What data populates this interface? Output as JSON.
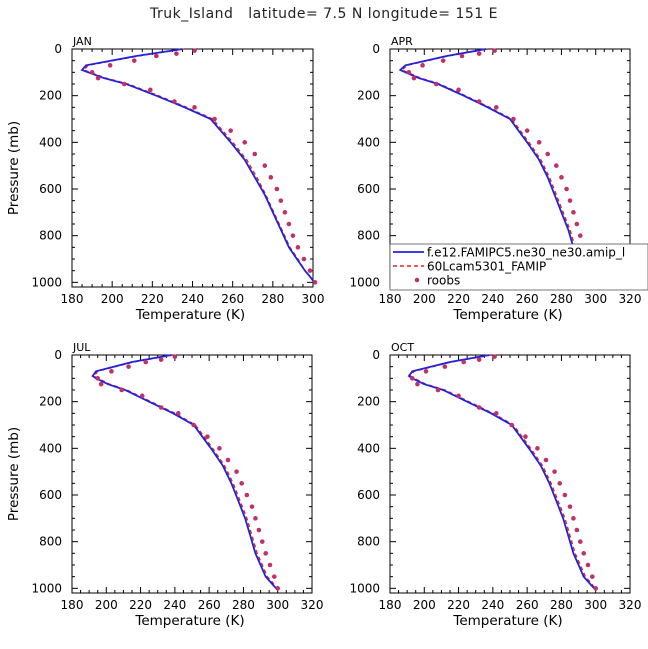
{
  "figure": {
    "title": "Truk_Island   latitude= 7.5 N longitude= 151 E"
  },
  "legend": {
    "entries": [
      {
        "name": "f.e12.FAMIPC5.ne30_ne30.amip_l",
        "style": "solid",
        "color": "#2222dd"
      },
      {
        "name": "60Lcam5301_FAMIP",
        "style": "dashed",
        "color": "#dd2222"
      },
      {
        "name": "roobs",
        "style": "marker",
        "color": "#c0306a"
      }
    ]
  },
  "chart_data": [
    {
      "type": "line",
      "panel_label": "JAN",
      "xlabel": "Temperature (K)",
      "ylabel": "Pressure (mb)",
      "xlim": [
        180,
        300
      ],
      "ylim": [
        1020,
        0
      ],
      "xticks": [
        180,
        200,
        220,
        240,
        260,
        280,
        300
      ],
      "yticks": [
        0,
        200,
        400,
        600,
        800,
        1000
      ],
      "series": [
        {
          "name": "f.e12.FAMIPC5.ne30_ne30.amip_l",
          "x": [
            235,
            212,
            187,
            185,
            188,
            196,
            207,
            222,
            236,
            249,
            259,
            266,
            271,
            276,
            280,
            284,
            288,
            292,
            296,
            298.5,
            300.5
          ],
          "y": [
            0,
            30,
            70,
            90,
            100,
            125,
            150,
            200,
            250,
            300,
            400,
            475,
            550,
            625,
            700,
            775,
            850,
            900,
            950,
            975,
            1000
          ]
        },
        {
          "name": "60Lcam5301_FAMIP",
          "x": [
            236,
            213,
            188,
            186,
            189,
            197,
            208,
            223,
            237,
            250,
            260,
            267,
            272,
            276.5,
            280.5,
            284.5,
            288.5,
            292.5,
            296,
            298.5,
            300.5
          ],
          "y": [
            0,
            30,
            70,
            90,
            100,
            125,
            150,
            200,
            250,
            300,
            400,
            475,
            550,
            625,
            700,
            775,
            850,
            900,
            950,
            975,
            1000
          ]
        },
        {
          "name": "roobs",
          "x": [
            241,
            232,
            222,
            211,
            199,
            190,
            193,
            206,
            219,
            231,
            241,
            251,
            259,
            266,
            271,
            276,
            279,
            282,
            284,
            286,
            288,
            290,
            292.5,
            295.5,
            298.5,
            301
          ],
          "y": [
            7,
            20,
            30,
            50,
            70,
            100,
            125,
            150,
            175,
            225,
            250,
            300,
            350,
            400,
            450,
            500,
            550,
            600,
            650,
            700,
            750,
            800,
            850,
            900,
            950,
            1000
          ]
        }
      ]
    },
    {
      "type": "line",
      "panel_label": "APR",
      "xlabel": "Temperature (K)",
      "ylabel": "",
      "xlim": [
        180,
        320
      ],
      "ylim": [
        1020,
        0
      ],
      "xticks": [
        180,
        200,
        220,
        240,
        260,
        280,
        300,
        320
      ],
      "yticks": [
        0,
        200,
        400,
        600,
        800,
        1000
      ],
      "series": [
        {
          "name": "f.e12.FAMIPC5.ne30_ne30.amip_l",
          "x": [
            236,
            213,
            189,
            186,
            189,
            197,
            208,
            223,
            237,
            250,
            260,
            267,
            272,
            276,
            280,
            284,
            287,
            290,
            294,
            297,
            300
          ],
          "y": [
            0,
            30,
            70,
            90,
            100,
            125,
            150,
            200,
            250,
            300,
            400,
            475,
            550,
            625,
            700,
            775,
            850,
            900,
            950,
            975,
            1000
          ]
        },
        {
          "name": "60Lcam5301_FAMIP",
          "x": [
            237,
            214,
            190,
            187,
            190,
            198,
            209,
            224,
            238,
            251,
            261,
            268,
            273,
            277,
            281,
            285,
            288,
            291,
            294.5,
            297.5,
            300
          ],
          "y": [
            0,
            30,
            70,
            90,
            100,
            125,
            150,
            200,
            250,
            300,
            400,
            475,
            550,
            625,
            700,
            775,
            850,
            900,
            950,
            975,
            1000
          ]
        },
        {
          "name": "roobs",
          "x": [
            241,
            232,
            222,
            211,
            199,
            191,
            194,
            207,
            220,
            232,
            242,
            252,
            260,
            267,
            272,
            277,
            280,
            283,
            285,
            287,
            289,
            291,
            293.5,
            296,
            299,
            300.5
          ],
          "y": [
            7,
            20,
            30,
            50,
            70,
            100,
            125,
            150,
            175,
            225,
            250,
            300,
            350,
            400,
            450,
            500,
            550,
            600,
            650,
            700,
            750,
            800,
            850,
            900,
            950,
            1000
          ]
        }
      ]
    },
    {
      "type": "line",
      "panel_label": "JUL",
      "xlabel": "Temperature (K)",
      "ylabel": "Pressure (mb)",
      "xlim": [
        180,
        320
      ],
      "ylim": [
        1020,
        0
      ],
      "xticks": [
        180,
        200,
        220,
        240,
        260,
        280,
        300,
        320
      ],
      "yticks": [
        0,
        200,
        400,
        600,
        800,
        1000
      ],
      "series": [
        {
          "name": "f.e12.FAMIPC5.ne30_ne30.amip_l",
          "x": [
            238,
            215,
            194,
            192,
            194,
            201,
            211,
            225,
            239,
            251,
            261,
            268,
            273,
            277,
            281,
            284,
            287,
            290,
            293,
            296,
            299
          ],
          "y": [
            0,
            30,
            70,
            90,
            100,
            125,
            150,
            200,
            250,
            300,
            400,
            475,
            550,
            625,
            700,
            775,
            850,
            900,
            950,
            975,
            1000
          ]
        },
        {
          "name": "60Lcam5301_FAMIP",
          "x": [
            239,
            216,
            195,
            193,
            195,
            202,
            212,
            226,
            240,
            252,
            262,
            269,
            274,
            278,
            282,
            285,
            288,
            291,
            294,
            297,
            299.5
          ],
          "y": [
            0,
            30,
            70,
            90,
            100,
            125,
            150,
            200,
            250,
            300,
            400,
            475,
            550,
            625,
            700,
            775,
            850,
            900,
            950,
            975,
            1000
          ]
        },
        {
          "name": "roobs",
          "x": [
            240,
            232,
            223,
            213,
            203,
            195,
            197,
            209,
            221,
            232,
            242,
            251,
            259,
            266,
            271,
            276,
            279,
            282,
            285,
            287,
            289,
            291,
            293,
            295.5,
            298,
            300
          ],
          "y": [
            7,
            20,
            30,
            50,
            70,
            100,
            125,
            150,
            175,
            225,
            250,
            300,
            350,
            400,
            450,
            500,
            550,
            600,
            650,
            700,
            750,
            800,
            850,
            900,
            950,
            1000
          ]
        }
      ]
    },
    {
      "type": "line",
      "panel_label": "OCT",
      "xlabel": "Temperature (K)",
      "ylabel": "",
      "xlim": [
        180,
        320
      ],
      "ylim": [
        1020,
        0
      ],
      "xticks": [
        180,
        200,
        220,
        240,
        260,
        280,
        300,
        320
      ],
      "yticks": [
        0,
        200,
        400,
        600,
        800,
        1000
      ],
      "series": [
        {
          "name": "f.e12.FAMIPC5.ne30_ne30.amip_l",
          "x": [
            238,
            215,
            193,
            191,
            193,
            200,
            211,
            225,
            239,
            251,
            261,
            268,
            273,
            277,
            281,
            284,
            287,
            290,
            293,
            296,
            299
          ],
          "y": [
            0,
            30,
            70,
            90,
            100,
            125,
            150,
            200,
            250,
            300,
            400,
            475,
            550,
            625,
            700,
            775,
            850,
            900,
            950,
            975,
            1000
          ]
        },
        {
          "name": "60Lcam5301_FAMIP",
          "x": [
            239,
            216,
            194,
            192,
            194,
            201,
            212,
            226,
            240,
            252,
            262,
            269,
            274,
            278,
            282,
            285,
            288,
            291,
            294,
            297,
            299.5
          ],
          "y": [
            0,
            30,
            70,
            90,
            100,
            125,
            150,
            200,
            250,
            300,
            400,
            475,
            550,
            625,
            700,
            775,
            850,
            900,
            950,
            975,
            1000
          ]
        },
        {
          "name": "roobs",
          "x": [
            241,
            232,
            223,
            212,
            201,
            193,
            196,
            208,
            220,
            232,
            242,
            251,
            259,
            266,
            271,
            276,
            279,
            282,
            285,
            287,
            289,
            291,
            293,
            295.5,
            298,
            300
          ],
          "y": [
            7,
            20,
            30,
            50,
            70,
            100,
            125,
            150,
            175,
            225,
            250,
            300,
            350,
            400,
            450,
            500,
            550,
            600,
            650,
            700,
            750,
            800,
            850,
            900,
            950,
            1000
          ]
        }
      ]
    }
  ]
}
